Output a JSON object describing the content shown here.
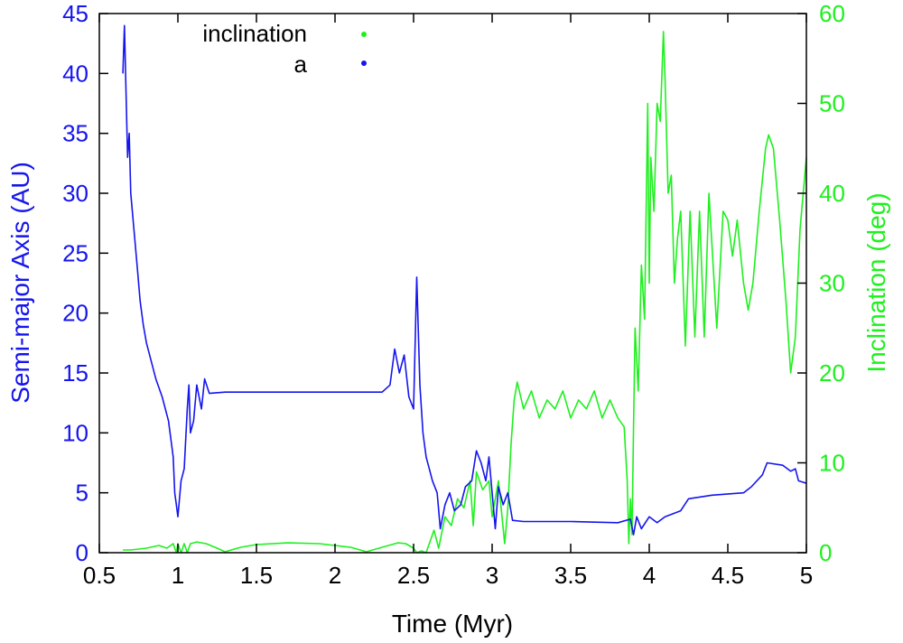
{
  "chart_data": {
    "type": "line",
    "xlabel": "Time (Myr)",
    "ylabel_left": "Semi-major Axis (AU)",
    "ylabel_right": "Inclination (deg)",
    "xlim": [
      0.5,
      5
    ],
    "ylim_left": [
      0,
      45
    ],
    "ylim_right": [
      0,
      60
    ],
    "x_ticks": [
      "0.5",
      "1",
      "1.5",
      "2",
      "2.5",
      "3",
      "3.5",
      "4",
      "4.5",
      "5"
    ],
    "y_ticks_left": [
      "0",
      "5",
      "10",
      "15",
      "20",
      "25",
      "30",
      "35",
      "40",
      "45"
    ],
    "y_ticks_right": [
      "0",
      "10",
      "20",
      "30",
      "40",
      "50",
      "60"
    ],
    "grid": false,
    "legend": "top-center",
    "series": [
      {
        "name": "a",
        "axis": "left",
        "color": "#1515ee",
        "points": [
          [
            0.65,
            40
          ],
          [
            0.66,
            44
          ],
          [
            0.68,
            33
          ],
          [
            0.69,
            35
          ],
          [
            0.7,
            30
          ],
          [
            0.72,
            27
          ],
          [
            0.74,
            24
          ],
          [
            0.76,
            21
          ],
          [
            0.78,
            19
          ],
          [
            0.8,
            17.5
          ],
          [
            0.83,
            16
          ],
          [
            0.86,
            14.5
          ],
          [
            0.9,
            13
          ],
          [
            0.94,
            11
          ],
          [
            0.97,
            8
          ],
          [
            0.98,
            5
          ],
          [
            0.99,
            4
          ],
          [
            1.0,
            3
          ],
          [
            1.02,
            6
          ],
          [
            1.04,
            7
          ],
          [
            1.06,
            12
          ],
          [
            1.07,
            14
          ],
          [
            1.08,
            10
          ],
          [
            1.1,
            11
          ],
          [
            1.12,
            14
          ],
          [
            1.15,
            12
          ],
          [
            1.17,
            14.5
          ],
          [
            1.2,
            13.3
          ],
          [
            1.3,
            13.4
          ],
          [
            1.5,
            13.4
          ],
          [
            2.0,
            13.4
          ],
          [
            2.3,
            13.4
          ],
          [
            2.35,
            14
          ],
          [
            2.38,
            17
          ],
          [
            2.41,
            15
          ],
          [
            2.44,
            16.5
          ],
          [
            2.47,
            13
          ],
          [
            2.5,
            12
          ],
          [
            2.52,
            23
          ],
          [
            2.54,
            14
          ],
          [
            2.56,
            10
          ],
          [
            2.58,
            8
          ],
          [
            2.6,
            7
          ],
          [
            2.62,
            6
          ],
          [
            2.65,
            5
          ],
          [
            2.67,
            2
          ],
          [
            2.7,
            4
          ],
          [
            2.73,
            5
          ],
          [
            2.76,
            3.5
          ],
          [
            2.8,
            4
          ],
          [
            2.83,
            5.5
          ],
          [
            2.87,
            6
          ],
          [
            2.9,
            8.5
          ],
          [
            2.93,
            7.5
          ],
          [
            2.96,
            6
          ],
          [
            2.98,
            8
          ],
          [
            3.0,
            5
          ],
          [
            3.02,
            2
          ],
          [
            3.04,
            5.5
          ],
          [
            3.07,
            4
          ],
          [
            3.1,
            5
          ],
          [
            3.13,
            2.7
          ],
          [
            3.2,
            2.6
          ],
          [
            3.5,
            2.6
          ],
          [
            3.8,
            2.5
          ],
          [
            3.88,
            2.8
          ],
          [
            3.9,
            1.5
          ],
          [
            3.92,
            3
          ],
          [
            3.95,
            2
          ],
          [
            4.0,
            3
          ],
          [
            4.05,
            2.5
          ],
          [
            4.1,
            3
          ],
          [
            4.2,
            3.5
          ],
          [
            4.25,
            4.5
          ],
          [
            4.4,
            4.8
          ],
          [
            4.6,
            5
          ],
          [
            4.65,
            5.5
          ],
          [
            4.72,
            6.5
          ],
          [
            4.75,
            7.5
          ],
          [
            4.85,
            7.3
          ],
          [
            4.9,
            6.8
          ],
          [
            4.93,
            7
          ],
          [
            4.95,
            6
          ],
          [
            5.0,
            5.8
          ]
        ]
      },
      {
        "name": "inclination",
        "axis": "right",
        "color": "#1ef01e",
        "points": [
          [
            0.65,
            0.3
          ],
          [
            0.7,
            0.3
          ],
          [
            0.8,
            0.5
          ],
          [
            0.88,
            0.8
          ],
          [
            0.93,
            0.5
          ],
          [
            0.97,
            1
          ],
          [
            0.99,
            0
          ],
          [
            1.0,
            1
          ],
          [
            1.02,
            0
          ],
          [
            1.04,
            1
          ],
          [
            1.06,
            0
          ],
          [
            1.08,
            1
          ],
          [
            1.12,
            1.2
          ],
          [
            1.18,
            1
          ],
          [
            1.25,
            0.5
          ],
          [
            1.3,
            0.1
          ],
          [
            1.4,
            0.6
          ],
          [
            1.5,
            0.9
          ],
          [
            1.7,
            1.1
          ],
          [
            1.9,
            1.0
          ],
          [
            2.1,
            0.6
          ],
          [
            2.2,
            0.1
          ],
          [
            2.3,
            0.6
          ],
          [
            2.4,
            1.1
          ],
          [
            2.45,
            1.0
          ],
          [
            2.5,
            0.5
          ],
          [
            2.52,
            0.0
          ],
          [
            2.55,
            0.2
          ],
          [
            2.58,
            0
          ],
          [
            2.6,
            1
          ],
          [
            2.63,
            2.5
          ],
          [
            2.66,
            0.5
          ],
          [
            2.7,
            4
          ],
          [
            2.74,
            3
          ],
          [
            2.78,
            6
          ],
          [
            2.82,
            5
          ],
          [
            2.86,
            8
          ],
          [
            2.88,
            3
          ],
          [
            2.9,
            9
          ],
          [
            2.94,
            7
          ],
          [
            2.98,
            8
          ],
          [
            3.0,
            4
          ],
          [
            3.04,
            8
          ],
          [
            3.08,
            1
          ],
          [
            3.1,
            5
          ],
          [
            3.12,
            12
          ],
          [
            3.14,
            17
          ],
          [
            3.16,
            19
          ],
          [
            3.2,
            16
          ],
          [
            3.25,
            18
          ],
          [
            3.3,
            15
          ],
          [
            3.35,
            17
          ],
          [
            3.4,
            16
          ],
          [
            3.45,
            18
          ],
          [
            3.5,
            15
          ],
          [
            3.55,
            17
          ],
          [
            3.6,
            16
          ],
          [
            3.65,
            18
          ],
          [
            3.7,
            15
          ],
          [
            3.75,
            17
          ],
          [
            3.8,
            15
          ],
          [
            3.84,
            14
          ],
          [
            3.86,
            8
          ],
          [
            3.87,
            1
          ],
          [
            3.88,
            6
          ],
          [
            3.89,
            2
          ],
          [
            3.9,
            14
          ],
          [
            3.91,
            25
          ],
          [
            3.93,
            18
          ],
          [
            3.95,
            32
          ],
          [
            3.97,
            26
          ],
          [
            3.99,
            50
          ],
          [
            4.0,
            30
          ],
          [
            4.01,
            44
          ],
          [
            4.03,
            38
          ],
          [
            4.05,
            50
          ],
          [
            4.07,
            48
          ],
          [
            4.09,
            58
          ],
          [
            4.1,
            53
          ],
          [
            4.12,
            40
          ],
          [
            4.14,
            42
          ],
          [
            4.16,
            30
          ],
          [
            4.18,
            35
          ],
          [
            4.2,
            38
          ],
          [
            4.23,
            23
          ],
          [
            4.26,
            38
          ],
          [
            4.29,
            24
          ],
          [
            4.32,
            38
          ],
          [
            4.35,
            24
          ],
          [
            4.38,
            40
          ],
          [
            4.43,
            25
          ],
          [
            4.47,
            38
          ],
          [
            4.5,
            37
          ],
          [
            4.53,
            33
          ],
          [
            4.56,
            37
          ],
          [
            4.6,
            30
          ],
          [
            4.63,
            27
          ],
          [
            4.66,
            30
          ],
          [
            4.7,
            38
          ],
          [
            4.74,
            45
          ],
          [
            4.76,
            46.5
          ],
          [
            4.79,
            45
          ],
          [
            4.83,
            37
          ],
          [
            4.87,
            28
          ],
          [
            4.9,
            20
          ],
          [
            4.93,
            24
          ],
          [
            4.96,
            36
          ],
          [
            5.0,
            44
          ]
        ]
      }
    ]
  }
}
